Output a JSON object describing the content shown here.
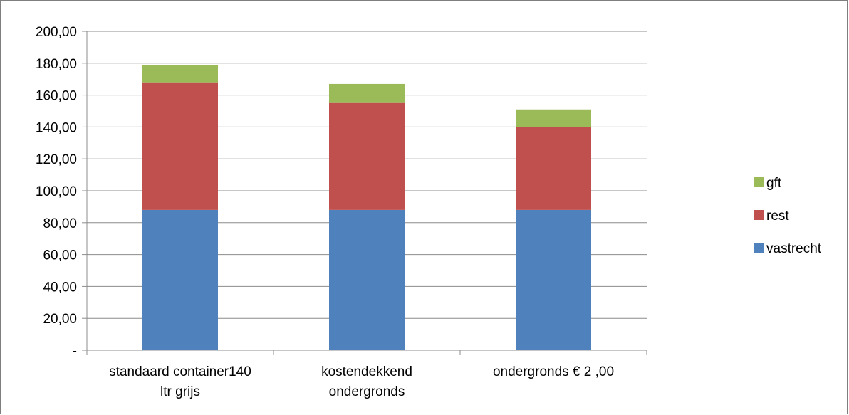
{
  "chart_data": {
    "type": "bar",
    "stacked": true,
    "categories": [
      [
        "standaard container140",
        "ltr grijs"
      ],
      [
        "kostendekkend",
        "ondergronds"
      ],
      [
        "ondergronds € 2 ,00"
      ]
    ],
    "series": [
      {
        "name": "vastrecht",
        "values": [
          88,
          88,
          88
        ],
        "color": "#4f81bd"
      },
      {
        "name": "rest",
        "values": [
          80,
          67.5,
          52
        ],
        "color": "#c0504d"
      },
      {
        "name": "gft",
        "values": [
          11,
          11.5,
          11
        ],
        "color": "#9bbb59"
      }
    ],
    "ylim": [
      0,
      200
    ],
    "yticks": [
      {
        "value": 0,
        "label": "-"
      },
      {
        "value": 20,
        "label": "20,00"
      },
      {
        "value": 40,
        "label": "40,00"
      },
      {
        "value": 60,
        "label": "60,00"
      },
      {
        "value": 80,
        "label": "80,00"
      },
      {
        "value": 100,
        "label": "100,00"
      },
      {
        "value": 120,
        "label": "120,00"
      },
      {
        "value": 140,
        "label": "140,00"
      },
      {
        "value": 160,
        "label": "160,00"
      },
      {
        "value": 180,
        "label": "180,00"
      },
      {
        "value": 200,
        "label": "200,00"
      }
    ],
    "legend": {
      "position": "right",
      "entries": [
        "gft",
        "rest",
        "vastrecht"
      ]
    },
    "grid": true,
    "title": "",
    "xlabel": "",
    "ylabel": ""
  }
}
